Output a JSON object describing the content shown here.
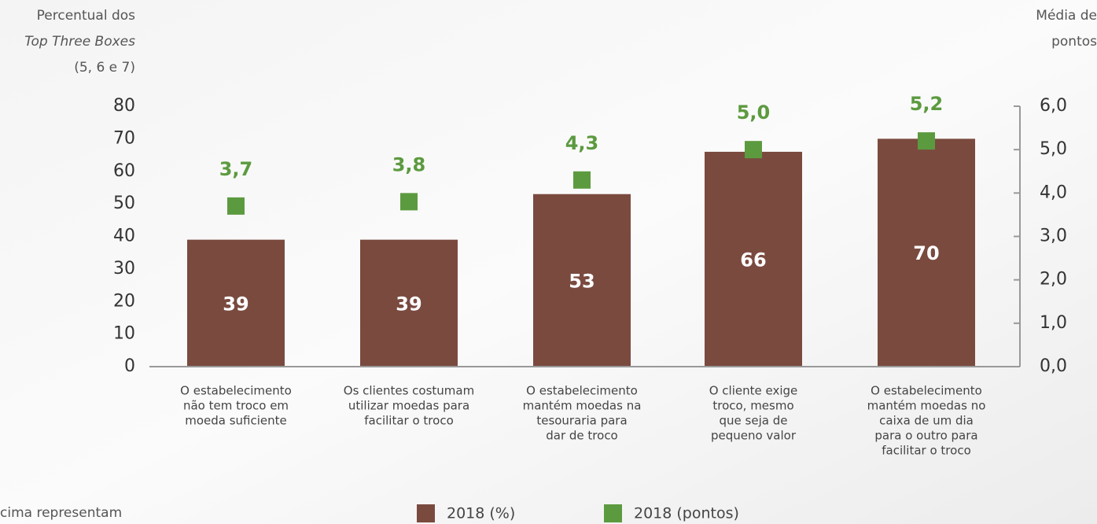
{
  "chart_data": {
    "type": "bar_point",
    "y_axis_label": [
      "Percentual dos",
      "Top Three Boxes",
      "(5, 6 e 7)"
    ],
    "y2_axis_label": [
      "Média de",
      "pontos"
    ],
    "categories": [
      [
        "O estabelecimento",
        "não tem troco em",
        "moeda suficiente"
      ],
      [
        "Os clientes costumam",
        "utilizar moedas para",
        "facilitar o troco"
      ],
      [
        "O estabelecimento",
        "mantém moedas na",
        "tesouraria para",
        "dar de troco"
      ],
      [
        "O cliente exige",
        "troco, mesmo",
        "que seja de",
        "pequeno valor"
      ],
      [
        "O estabelecimento",
        "mantém moedas no",
        "caixa de um dia",
        "para o outro para",
        "facilitar o troco"
      ]
    ],
    "series": [
      {
        "name": "2018 (%)",
        "color": "#7a4a3f",
        "values": [
          39,
          39,
          53,
          66,
          70
        ]
      },
      {
        "name": "2018 (pontos)",
        "color": "#5c9a3f",
        "axis": "y2",
        "values": [
          3.7,
          3.8,
          4.3,
          5.0,
          5.2
        ],
        "value_labels": [
          "3,7",
          "3,8",
          "4,3",
          "5,0",
          "5,2"
        ]
      }
    ],
    "ylim": [
      0,
      80
    ],
    "yticks": [
      0,
      10,
      20,
      30,
      40,
      50,
      60,
      70,
      80
    ],
    "y2lim": [
      0,
      6
    ],
    "y2ticks": [
      {
        "value": 0,
        "label": "0,0"
      },
      {
        "value": 1,
        "label": "1,0"
      },
      {
        "value": 2,
        "label": "2,0"
      },
      {
        "value": 3,
        "label": "3,0"
      },
      {
        "value": 4,
        "label": "4,0"
      },
      {
        "value": 5,
        "label": "5,0"
      },
      {
        "value": 6,
        "label": "6,0"
      }
    ],
    "note": "cima representam"
  }
}
